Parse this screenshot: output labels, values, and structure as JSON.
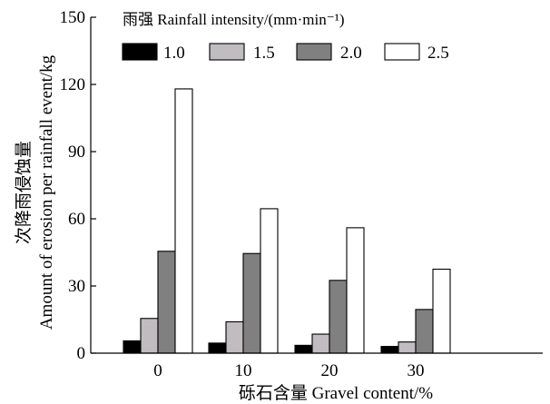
{
  "chart_data": {
    "type": "bar",
    "categories": [
      "0",
      "10",
      "20",
      "30"
    ],
    "series": [
      {
        "name": "1.0",
        "values": [
          5.5,
          4.5,
          3.5,
          3.0
        ],
        "color": "#000000"
      },
      {
        "name": "1.5",
        "values": [
          15.5,
          14.0,
          8.5,
          5.0
        ],
        "color": "#c0bcc0"
      },
      {
        "name": "2.0",
        "values": [
          45.5,
          44.5,
          32.5,
          19.5
        ],
        "color": "#808080"
      },
      {
        "name": "2.5",
        "values": [
          118.0,
          64.5,
          56.0,
          37.5
        ],
        "color": "#ffffff"
      }
    ],
    "xlabel": "砾石含量 Gravel content/%",
    "ylabel_cn": "次降雨侵蚀量",
    "ylabel_en": "Amount of erosion per rainfall event/kg",
    "legend_title": "雨强 Rainfall intensity/(mm·min⁻¹)",
    "ylim": [
      0,
      150
    ],
    "yticks": [
      0,
      30,
      60,
      90,
      120,
      150
    ],
    "grid": false,
    "legend_position": "top-left"
  }
}
